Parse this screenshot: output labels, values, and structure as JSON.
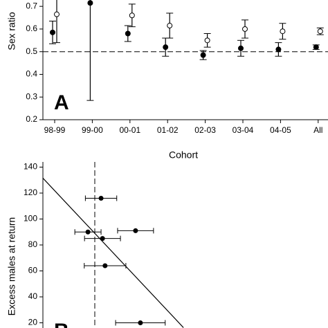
{
  "chart_data": [
    {
      "type": "errorbar",
      "ylabel": "Sex ratio",
      "xlabel": "Cohort",
      "panel_label": "A",
      "categories": [
        "98-99",
        "99-00",
        "00-01",
        "01-02",
        "02-03",
        "03-04",
        "04-05",
        "All"
      ],
      "series": [
        {
          "marker": "filled",
          "color": "#000000",
          "values": [
            0.585,
            0.715,
            0.58,
            0.52,
            0.485,
            0.515,
            0.51,
            0.52
          ],
          "errors": [
            0.05,
            0.43,
            0.035,
            0.04,
            0.02,
            0.035,
            0.03,
            0.01
          ]
        },
        {
          "marker": "open",
          "color": "#000000",
          "values": [
            0.665,
            null,
            0.66,
            0.615,
            0.55,
            0.6,
            0.59,
            0.59
          ],
          "errors": [
            0.125,
            null,
            0.05,
            0.055,
            0.03,
            0.04,
            0.035,
            0.015
          ]
        }
      ],
      "reference_line": 0.5,
      "ylim": [
        0.2,
        0.728
      ],
      "yticks": [
        0.2,
        0.3,
        0.4,
        0.5,
        0.6,
        0.7
      ]
    },
    {
      "type": "scatter",
      "ylabel": "Excess males at return",
      "panel_label": "B",
      "x": [
        20.4,
        15.8,
        20.9,
        32.5,
        21.8,
        34.2
      ],
      "values": [
        116,
        90,
        85,
        91,
        64,
        20
      ],
      "xerr": [
        5.5,
        4.6,
        6.3,
        6.3,
        7.3,
        8.7
      ],
      "color": "#000000",
      "reference_x": 18.2,
      "fit": {
        "x": [
          0,
          49.3
        ],
        "y": [
          131.5,
          16.3
        ]
      },
      "xlim": [
        0,
        100
      ],
      "ylim": [
        16,
        144
      ],
      "yticks": [
        20,
        40,
        60,
        80,
        100,
        120,
        140
      ]
    }
  ]
}
